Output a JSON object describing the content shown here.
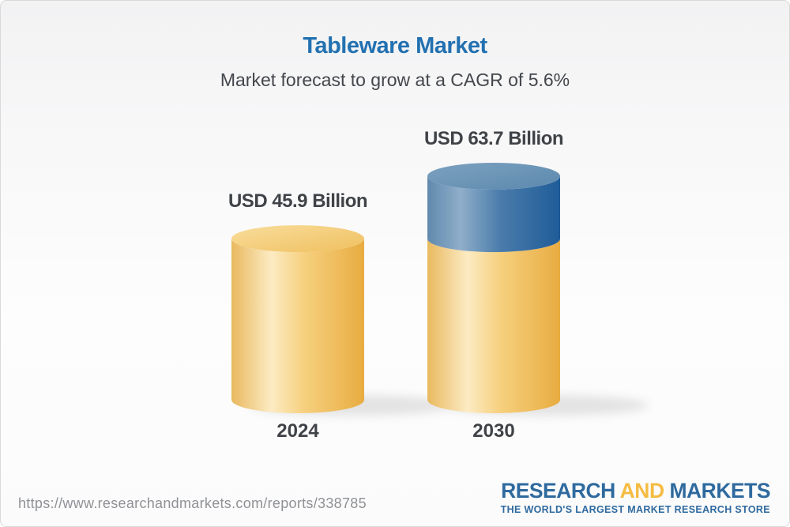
{
  "header": {
    "title": "Tableware Market",
    "subtitle": "Market forecast to grow at a CAGR of 5.6%"
  },
  "chart_data": {
    "type": "bar",
    "subtype": "3d-cylinder",
    "categories": [
      "2024",
      "2030"
    ],
    "values": [
      45.9,
      63.7
    ],
    "unit": "USD Billion",
    "value_labels": [
      "USD 45.9 Billion",
      "USD 63.7 Billion"
    ],
    "cagr_percent": 5.6,
    "legend_position": "none",
    "grid": false,
    "colors": {
      "base_segment": "#F0C261",
      "growth_segment": "#4A7CAB",
      "label_text": "#3F4347"
    }
  },
  "footer": {
    "url": "https://www.researchandmarkets.com/reports/338785",
    "logo": {
      "part1": "RESEARCH",
      "part2": "AND",
      "part3": "MARKETS",
      "tagline": "THE WORLD'S LARGEST MARKET RESEARCH STORE",
      "blue": "#2F6A9E",
      "yellow": "#F5BC42"
    }
  },
  "colors": {
    "title": "#2271B1",
    "subtitle": "#43464B",
    "url_text": "#8F9194"
  }
}
